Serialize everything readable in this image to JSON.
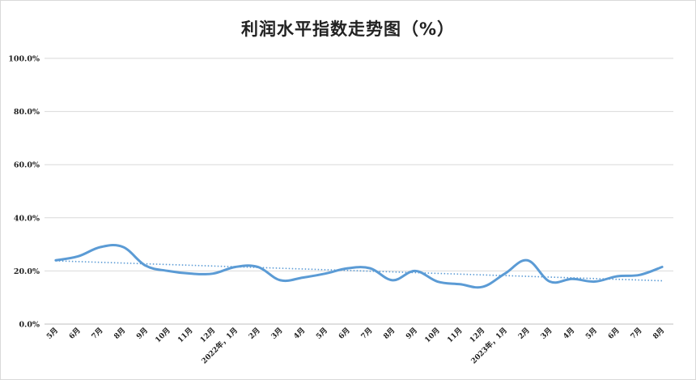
{
  "chart_data": {
    "type": "line",
    "title": "利润水平指数走势图（%）",
    "xlabel": "",
    "ylabel": "",
    "ylim": [
      0,
      100
    ],
    "y_ticks": [
      "0.0%",
      "20.0%",
      "40.0%",
      "60.0%",
      "80.0%",
      "100.0%"
    ],
    "grid": true,
    "legend": "none",
    "categories": [
      "5月",
      "6月",
      "7月",
      "8月",
      "9月",
      "10月",
      "11月",
      "12月",
      "2022年，1月",
      "2月",
      "3月",
      "4月",
      "5月",
      "6月",
      "7月",
      "8月",
      "9月",
      "10月",
      "11月",
      "12月",
      "2023年，1月",
      "2月",
      "3月",
      "4月",
      "5月",
      "6月",
      "7月",
      "8月"
    ],
    "series": [
      {
        "values": [
          24.0,
          25.5,
          29.0,
          29.0,
          22.0,
          20.0,
          19.0,
          19.0,
          21.5,
          21.5,
          16.5,
          17.5,
          19.0,
          21.0,
          21.0,
          16.5,
          20.0,
          16.0,
          15.0,
          14.0,
          19.0,
          24.0,
          16.0,
          17.0,
          16.0,
          18.0,
          18.5,
          21.5
        ],
        "color": "#5b9bd5"
      },
      {
        "type": "trendline",
        "start": 23.8,
        "end": 16.3,
        "color": "#5b9bd5"
      }
    ]
  }
}
